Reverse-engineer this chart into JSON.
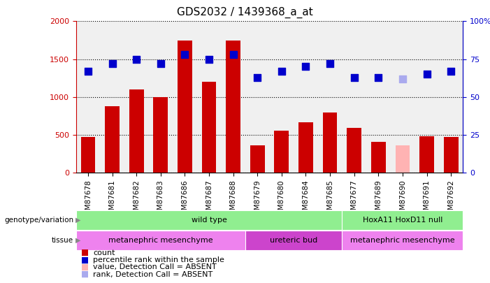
{
  "title": "GDS2032 / 1439368_a_at",
  "samples": [
    "GSM87678",
    "GSM87681",
    "GSM87682",
    "GSM87683",
    "GSM87686",
    "GSM87687",
    "GSM87688",
    "GSM87679",
    "GSM87680",
    "GSM87684",
    "GSM87685",
    "GSM87677",
    "GSM87689",
    "GSM87690",
    "GSM87691",
    "GSM87692"
  ],
  "bar_values": [
    470,
    880,
    1100,
    1000,
    1750,
    1200,
    1750,
    360,
    560,
    670,
    800,
    590,
    410,
    360,
    480,
    470
  ],
  "bar_colors": [
    "#cc0000",
    "#cc0000",
    "#cc0000",
    "#cc0000",
    "#cc0000",
    "#cc0000",
    "#cc0000",
    "#cc0000",
    "#cc0000",
    "#cc0000",
    "#cc0000",
    "#cc0000",
    "#cc0000",
    "#ffb3b3",
    "#cc0000",
    "#cc0000"
  ],
  "dot_values": [
    67,
    72,
    75,
    72,
    78,
    75,
    78,
    63,
    67,
    70,
    72,
    63,
    63,
    62,
    65,
    67
  ],
  "dot_colors": [
    "#0000cc",
    "#0000cc",
    "#0000cc",
    "#0000cc",
    "#0000cc",
    "#0000cc",
    "#0000cc",
    "#0000cc",
    "#0000cc",
    "#0000cc",
    "#0000cc",
    "#0000cc",
    "#0000cc",
    "#aaaaee",
    "#0000cc",
    "#0000cc"
  ],
  "ylim_left": [
    0,
    2000
  ],
  "ylim_right": [
    0,
    100
  ],
  "yticks_left": [
    0,
    500,
    1000,
    1500,
    2000
  ],
  "yticks_right": [
    0,
    25,
    50,
    75,
    100
  ],
  "ytick_labels_right": [
    "0",
    "25",
    "50",
    "75",
    "100%"
  ],
  "genotype_groups": [
    {
      "label": "wild type",
      "start": 0,
      "end": 11,
      "color": "#90ee90"
    },
    {
      "label": "HoxA11 HoxD11 null",
      "start": 11,
      "end": 16,
      "color": "#90ee90"
    }
  ],
  "tissue_groups": [
    {
      "label": "metanephric mesenchyme",
      "start": 0,
      "end": 7,
      "color": "#ee82ee"
    },
    {
      "label": "ureteric bud",
      "start": 7,
      "end": 11,
      "color": "#cc44cc"
    },
    {
      "label": "metanephric mesenchyme",
      "start": 11,
      "end": 16,
      "color": "#ee82ee"
    }
  ],
  "legend_items": [
    {
      "color": "#cc0000",
      "label": "count"
    },
    {
      "color": "#0000cc",
      "label": "percentile rank within the sample"
    },
    {
      "color": "#ffb3b3",
      "label": "value, Detection Call = ABSENT"
    },
    {
      "color": "#aaaaee",
      "label": "rank, Detection Call = ABSENT"
    }
  ],
  "bar_width": 0.6,
  "dot_size": 55,
  "bg_color": "#e8e8e8",
  "plot_bg": "#ffffff"
}
